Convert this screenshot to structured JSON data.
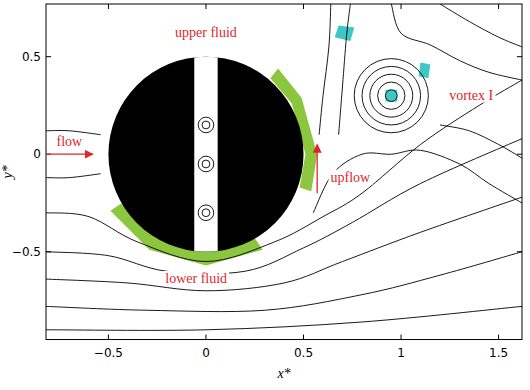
{
  "chart_data": {
    "type": "streamline",
    "xlabel": "x*",
    "ylabel": "y*",
    "xlim": [
      -0.82,
      1.62
    ],
    "ylim": [
      -0.95,
      0.77
    ],
    "xticks": [
      {
        "value": -0.5,
        "label": "−0.5"
      },
      0,
      0.5,
      1,
      1.5
    ],
    "yticks": [
      {
        "value": -0.5,
        "label": "−0.5"
      },
      0,
      0.5
    ],
    "color": "#000000",
    "cylinder": {
      "x": 0,
      "y": 0,
      "r": 0.5,
      "slot": 0.06,
      "color": "#000000"
    },
    "series": [
      {
        "x": [
          -0.82,
          0,
          0.8,
          1.62
        ],
        "y": [
          -0.9,
          -0.9,
          -0.86,
          -0.78
        ]
      },
      {
        "x": [
          -0.82,
          -0.3,
          0.3,
          0.8,
          1.2,
          1.62
        ],
        "y": [
          -0.78,
          -0.8,
          -0.8,
          -0.72,
          -0.62,
          -0.5
        ]
      },
      {
        "x": [
          -0.82,
          -0.4,
          0,
          0.4,
          0.7,
          1.1,
          1.62
        ],
        "y": [
          -0.64,
          -0.66,
          -0.7,
          -0.66,
          -0.55,
          -0.4,
          -0.22
        ]
      },
      {
        "x": [
          -0.82,
          -0.5,
          -0.2,
          0.2,
          0.5,
          0.75,
          1.1,
          1.62
        ],
        "y": [
          -0.5,
          -0.52,
          -0.6,
          -0.6,
          -0.48,
          -0.35,
          -0.15,
          0.08
        ]
      },
      {
        "x": [
          -0.82,
          -0.6,
          -0.35,
          0,
          0.35,
          0.6,
          0.8,
          1.1,
          1.4,
          1.62
        ],
        "y": [
          -0.3,
          -0.32,
          -0.45,
          -0.55,
          -0.45,
          -0.32,
          -0.2,
          0.05,
          0.25,
          0.38
        ]
      },
      {
        "x": [
          -0.82,
          -0.7,
          -0.54
        ],
        "y": [
          -0.12,
          -0.12,
          -0.1
        ]
      },
      {
        "x": [
          -0.82,
          -0.7,
          -0.54
        ],
        "y": [
          0.12,
          0.12,
          0.1
        ]
      },
      {
        "x": [
          0.55,
          0.65,
          0.8,
          0.95,
          1.1,
          1.3,
          1.45,
          1.62
        ],
        "y": [
          -0.3,
          -0.1,
          0.0,
          0.0,
          0.02,
          -0.05,
          -0.15,
          -0.25
        ]
      },
      {
        "x": [
          0.58,
          0.6,
          0.63,
          0.64
        ],
        "y": [
          0.1,
          0.3,
          0.55,
          0.77
        ]
      },
      {
        "x": [
          0.68,
          0.7,
          0.72,
          0.74
        ],
        "y": [
          0.1,
          0.35,
          0.6,
          0.77
        ]
      },
      {
        "x": [
          0.95,
          1.0,
          1.15,
          1.3,
          1.45,
          1.62
        ],
        "y": [
          0.77,
          0.62,
          0.56,
          0.48,
          0.42,
          0.38
        ]
      },
      {
        "x": [
          1.2,
          1.35,
          1.5,
          1.62
        ],
        "y": [
          0.77,
          0.68,
          0.6,
          0.55
        ]
      },
      {
        "x": [
          1.2,
          1.35,
          1.5,
          1.62
        ],
        "y": [
          0.15,
          0.12,
          0.05,
          -0.02
        ]
      }
    ],
    "vortices": [
      {
        "x": 0.95,
        "y": 0.3,
        "r": [
          0.03,
          0.07,
          0.11,
          0.15,
          0.19
        ]
      },
      {
        "x": 0,
        "y": 0.15,
        "r": [
          0.02,
          0.04
        ]
      },
      {
        "x": 0,
        "y": -0.05,
        "r": [
          0.02,
          0.04
        ]
      },
      {
        "x": 0,
        "y": -0.3,
        "r": [
          0.02,
          0.04
        ]
      }
    ],
    "patches": [
      {
        "color": "#8cc63f",
        "x": [
          -0.49,
          -0.29,
          0,
          0.29,
          0.25,
          0,
          -0.25,
          -0.43
        ],
        "y": [
          -0.29,
          -0.49,
          -0.57,
          -0.49,
          -0.43,
          -0.5,
          -0.43,
          -0.25
        ]
      },
      {
        "color": "#8cc63f",
        "x": [
          0.54,
          0.57,
          0.49,
          0.37,
          0.33,
          0.44,
          0.51,
          0.48
        ],
        "y": [
          -0.19,
          0,
          0.29,
          0.44,
          0.39,
          0.26,
          0,
          -0.17
        ]
      },
      {
        "color": "#3fc6c6",
        "x": [
          0.66,
          0.74,
          0.76,
          0.68
        ],
        "y": [
          0.6,
          0.58,
          0.65,
          0.66
        ]
      },
      {
        "color": "#3fc6c6",
        "x": [
          1.09,
          1.14,
          1.15,
          1.1
        ],
        "y": [
          0.4,
          0.39,
          0.46,
          0.47
        ]
      },
      {
        "color": "#3fc6c6",
        "x": [
          0.92,
          0.98,
          0.98,
          0.92
        ],
        "y": [
          0.27,
          0.27,
          0.33,
          0.33
        ]
      }
    ],
    "annotations": [
      {
        "text": "upper fluid",
        "x": 0,
        "y": 0.6,
        "color": "#e0262c"
      },
      {
        "text": "flow",
        "x": -0.7,
        "y": 0.04,
        "color": "#e0262c",
        "arrow": {
          "x": [
            -0.82,
            -0.58
          ],
          "y": [
            0,
            0
          ]
        }
      },
      {
        "text": "lower fluid",
        "x": -0.05,
        "y": -0.66,
        "color": "#e0262c"
      },
      {
        "text": "upflow",
        "x": 0.74,
        "y": -0.14,
        "color": "#e0262c",
        "arrow": {
          "x": [
            0.57,
            0.57
          ],
          "y": [
            -0.2,
            0.05
          ]
        }
      },
      {
        "text": "vortex I",
        "x": 1.36,
        "y": 0.28,
        "color": "#e0262c"
      }
    ]
  }
}
